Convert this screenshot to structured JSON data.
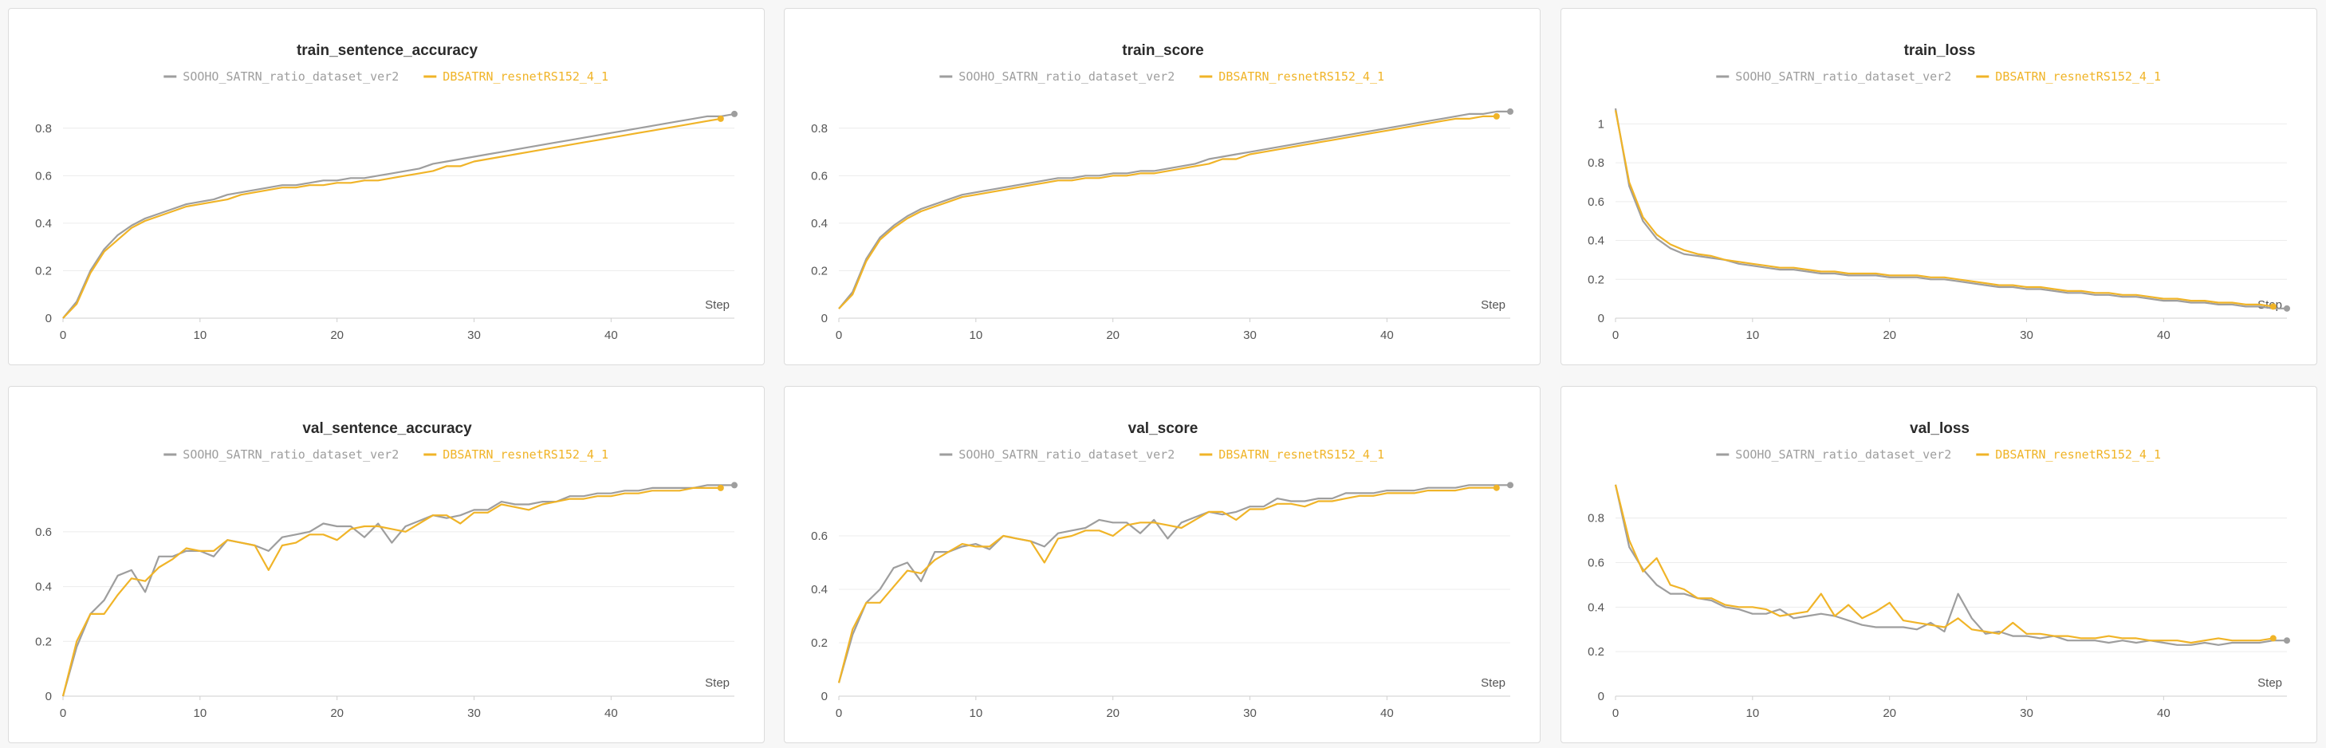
{
  "colors": {
    "series_1": "#9e9e9e",
    "series_2": "#f0b428",
    "grid": "#ececec",
    "axis": "#cfcfcf"
  },
  "chart_data": [
    {
      "type": "line",
      "title": "train_sentence_accuracy",
      "xlabel": "Step",
      "xlim": [
        0,
        49
      ],
      "ylim": [
        0,
        0.9
      ],
      "xticks": [
        0,
        10,
        20,
        30,
        40
      ],
      "yticks": [
        0,
        0.2,
        0.4,
        0.6,
        0.8
      ],
      "ytick_labels": [
        "0",
        "0.2",
        "0.4",
        "0.6",
        "0.8"
      ],
      "legend_position": "top-center",
      "grid": true,
      "series": [
        {
          "name": "SOOHO_SATRN_ratio_dataset_ver2",
          "y": [
            0.0,
            0.07,
            0.2,
            0.29,
            0.35,
            0.39,
            0.42,
            0.44,
            0.46,
            0.48,
            0.49,
            0.5,
            0.52,
            0.53,
            0.54,
            0.55,
            0.56,
            0.56,
            0.57,
            0.58,
            0.58,
            0.59,
            0.59,
            0.6,
            0.61,
            0.62,
            0.63,
            0.65,
            0.66,
            0.67,
            0.68,
            0.69,
            0.7,
            0.71,
            0.72,
            0.73,
            0.74,
            0.75,
            0.76,
            0.77,
            0.78,
            0.79,
            0.8,
            0.81,
            0.82,
            0.83,
            0.84,
            0.85,
            0.85,
            0.86
          ]
        },
        {
          "name": "DBSATRN_resnetRS152_4_1",
          "y": [
            0.0,
            0.06,
            0.19,
            0.28,
            0.33,
            0.38,
            0.41,
            0.43,
            0.45,
            0.47,
            0.48,
            0.49,
            0.5,
            0.52,
            0.53,
            0.54,
            0.55,
            0.55,
            0.56,
            0.56,
            0.57,
            0.57,
            0.58,
            0.58,
            0.59,
            0.6,
            0.61,
            0.62,
            0.64,
            0.64,
            0.66,
            0.67,
            0.68,
            0.69,
            0.7,
            0.71,
            0.72,
            0.73,
            0.74,
            0.75,
            0.76,
            0.77,
            0.78,
            0.79,
            0.8,
            0.81,
            0.82,
            0.83,
            0.84
          ]
        }
      ]
    },
    {
      "type": "line",
      "title": "train_score",
      "xlabel": "Step",
      "xlim": [
        0,
        49
      ],
      "ylim": [
        0,
        0.9
      ],
      "xticks": [
        0,
        10,
        20,
        30,
        40
      ],
      "yticks": [
        0,
        0.2,
        0.4,
        0.6,
        0.8
      ],
      "ytick_labels": [
        "0",
        "0.2",
        "0.4",
        "0.6",
        "0.8"
      ],
      "legend_position": "top-center",
      "grid": true,
      "series": [
        {
          "name": "SOOHO_SATRN_ratio_dataset_ver2",
          "y": [
            0.04,
            0.11,
            0.25,
            0.34,
            0.39,
            0.43,
            0.46,
            0.48,
            0.5,
            0.52,
            0.53,
            0.54,
            0.55,
            0.56,
            0.57,
            0.58,
            0.59,
            0.59,
            0.6,
            0.6,
            0.61,
            0.61,
            0.62,
            0.62,
            0.63,
            0.64,
            0.65,
            0.67,
            0.68,
            0.69,
            0.7,
            0.71,
            0.72,
            0.73,
            0.74,
            0.75,
            0.76,
            0.77,
            0.78,
            0.79,
            0.8,
            0.81,
            0.82,
            0.83,
            0.84,
            0.85,
            0.86,
            0.86,
            0.87,
            0.87
          ]
        },
        {
          "name": "DBSATRN_resnetRS152_4_1",
          "y": [
            0.04,
            0.1,
            0.24,
            0.33,
            0.38,
            0.42,
            0.45,
            0.47,
            0.49,
            0.51,
            0.52,
            0.53,
            0.54,
            0.55,
            0.56,
            0.57,
            0.58,
            0.58,
            0.59,
            0.59,
            0.6,
            0.6,
            0.61,
            0.61,
            0.62,
            0.63,
            0.64,
            0.65,
            0.67,
            0.67,
            0.69,
            0.7,
            0.71,
            0.72,
            0.73,
            0.74,
            0.75,
            0.76,
            0.77,
            0.78,
            0.79,
            0.8,
            0.81,
            0.82,
            0.83,
            0.84,
            0.84,
            0.85,
            0.85
          ]
        }
      ]
    },
    {
      "type": "line",
      "title": "train_loss",
      "xlabel": "Step",
      "xlim": [
        0,
        49
      ],
      "ylim": [
        0,
        1.1
      ],
      "xticks": [
        0,
        10,
        20,
        30,
        40
      ],
      "yticks": [
        0,
        0.2,
        0.4,
        0.6,
        0.8,
        1
      ],
      "ytick_labels": [
        "0",
        "0.2",
        "0.4",
        "0.6",
        "0.8",
        "1"
      ],
      "legend_position": "top-center",
      "grid": true,
      "series": [
        {
          "name": "SOOHO_SATRN_ratio_dataset_ver2",
          "y": [
            1.08,
            0.68,
            0.5,
            0.41,
            0.36,
            0.33,
            0.32,
            0.31,
            0.3,
            0.28,
            0.27,
            0.26,
            0.25,
            0.25,
            0.24,
            0.23,
            0.23,
            0.22,
            0.22,
            0.22,
            0.21,
            0.21,
            0.21,
            0.2,
            0.2,
            0.19,
            0.18,
            0.17,
            0.16,
            0.16,
            0.15,
            0.15,
            0.14,
            0.13,
            0.13,
            0.12,
            0.12,
            0.11,
            0.11,
            0.1,
            0.09,
            0.09,
            0.08,
            0.08,
            0.07,
            0.07,
            0.06,
            0.06,
            0.05,
            0.05
          ]
        },
        {
          "name": "DBSATRN_resnetRS152_4_1",
          "y": [
            1.07,
            0.7,
            0.52,
            0.43,
            0.38,
            0.35,
            0.33,
            0.32,
            0.3,
            0.29,
            0.28,
            0.27,
            0.26,
            0.26,
            0.25,
            0.24,
            0.24,
            0.23,
            0.23,
            0.23,
            0.22,
            0.22,
            0.22,
            0.21,
            0.21,
            0.2,
            0.19,
            0.18,
            0.17,
            0.17,
            0.16,
            0.16,
            0.15,
            0.14,
            0.14,
            0.13,
            0.13,
            0.12,
            0.12,
            0.11,
            0.1,
            0.1,
            0.09,
            0.09,
            0.08,
            0.08,
            0.07,
            0.07,
            0.06
          ]
        }
      ]
    },
    {
      "type": "line",
      "title": "val_sentence_accuracy",
      "xlabel": "Step",
      "xlim": [
        0,
        49
      ],
      "ylim": [
        0,
        0.78
      ],
      "xticks": [
        0,
        10,
        20,
        30,
        40
      ],
      "yticks": [
        0,
        0.2,
        0.4,
        0.6
      ],
      "ytick_labels": [
        "0",
        "0.2",
        "0.4",
        "0.6"
      ],
      "legend_position": "top-center",
      "grid": true,
      "series": [
        {
          "name": "SOOHO_SATRN_ratio_dataset_ver2",
          "y": [
            0.0,
            0.18,
            0.3,
            0.35,
            0.44,
            0.46,
            0.38,
            0.51,
            0.51,
            0.53,
            0.53,
            0.51,
            0.57,
            0.56,
            0.55,
            0.53,
            0.58,
            0.59,
            0.6,
            0.63,
            0.62,
            0.62,
            0.58,
            0.63,
            0.56,
            0.62,
            0.64,
            0.66,
            0.65,
            0.66,
            0.68,
            0.68,
            0.71,
            0.7,
            0.7,
            0.71,
            0.71,
            0.73,
            0.73,
            0.74,
            0.74,
            0.75,
            0.75,
            0.76,
            0.76,
            0.76,
            0.76,
            0.77,
            0.77,
            0.77
          ]
        },
        {
          "name": "DBSATRN_resnetRS152_4_1",
          "y": [
            0.0,
            0.2,
            0.3,
            0.3,
            0.37,
            0.43,
            0.42,
            0.47,
            0.5,
            0.54,
            0.53,
            0.53,
            0.57,
            0.56,
            0.55,
            0.46,
            0.55,
            0.56,
            0.59,
            0.59,
            0.57,
            0.61,
            0.62,
            0.62,
            0.61,
            0.6,
            0.63,
            0.66,
            0.66,
            0.63,
            0.67,
            0.67,
            0.7,
            0.69,
            0.68,
            0.7,
            0.71,
            0.72,
            0.72,
            0.73,
            0.73,
            0.74,
            0.74,
            0.75,
            0.75,
            0.75,
            0.76,
            0.76,
            0.76
          ]
        }
      ]
    },
    {
      "type": "line",
      "title": "val_score",
      "xlabel": "Step",
      "xlim": [
        0,
        49
      ],
      "ylim": [
        0,
        0.8
      ],
      "xticks": [
        0,
        10,
        20,
        30,
        40
      ],
      "yticks": [
        0,
        0.2,
        0.4,
        0.6
      ],
      "ytick_labels": [
        "0",
        "0.2",
        "0.4",
        "0.6"
      ],
      "legend_position": "top-center",
      "grid": true,
      "series": [
        {
          "name": "SOOHO_SATRN_ratio_dataset_ver2",
          "y": [
            0.05,
            0.23,
            0.35,
            0.4,
            0.48,
            0.5,
            0.43,
            0.54,
            0.54,
            0.56,
            0.57,
            0.55,
            0.6,
            0.59,
            0.58,
            0.56,
            0.61,
            0.62,
            0.63,
            0.66,
            0.65,
            0.65,
            0.61,
            0.66,
            0.59,
            0.65,
            0.67,
            0.69,
            0.68,
            0.69,
            0.71,
            0.71,
            0.74,
            0.73,
            0.73,
            0.74,
            0.74,
            0.76,
            0.76,
            0.76,
            0.77,
            0.77,
            0.77,
            0.78,
            0.78,
            0.78,
            0.79,
            0.79,
            0.79,
            0.79
          ]
        },
        {
          "name": "DBSATRN_resnetRS152_4_1",
          "y": [
            0.05,
            0.25,
            0.35,
            0.35,
            0.41,
            0.47,
            0.46,
            0.51,
            0.54,
            0.57,
            0.56,
            0.56,
            0.6,
            0.59,
            0.58,
            0.5,
            0.59,
            0.6,
            0.62,
            0.62,
            0.6,
            0.64,
            0.65,
            0.65,
            0.64,
            0.63,
            0.66,
            0.69,
            0.69,
            0.66,
            0.7,
            0.7,
            0.72,
            0.72,
            0.71,
            0.73,
            0.73,
            0.74,
            0.75,
            0.75,
            0.76,
            0.76,
            0.76,
            0.77,
            0.77,
            0.77,
            0.78,
            0.78,
            0.78
          ]
        }
      ]
    },
    {
      "type": "line",
      "title": "val_loss",
      "xlabel": "Step",
      "xlim": [
        0,
        49
      ],
      "ylim": [
        0,
        0.96
      ],
      "xticks": [
        0,
        10,
        20,
        30,
        40
      ],
      "yticks": [
        0,
        0.2,
        0.4,
        0.6,
        0.8
      ],
      "ytick_labels": [
        "0",
        "0.2",
        "0.4",
        "0.6",
        "0.8"
      ],
      "legend_position": "top-center",
      "grid": true,
      "series": [
        {
          "name": "SOOHO_SATRN_ratio_dataset_ver2",
          "y": [
            0.95,
            0.67,
            0.57,
            0.5,
            0.46,
            0.46,
            0.44,
            0.43,
            0.4,
            0.39,
            0.37,
            0.37,
            0.39,
            0.35,
            0.36,
            0.37,
            0.36,
            0.34,
            0.32,
            0.31,
            0.31,
            0.31,
            0.3,
            0.33,
            0.29,
            0.46,
            0.35,
            0.28,
            0.29,
            0.27,
            0.27,
            0.26,
            0.27,
            0.25,
            0.25,
            0.25,
            0.24,
            0.25,
            0.24,
            0.25,
            0.24,
            0.23,
            0.23,
            0.24,
            0.23,
            0.24,
            0.24,
            0.24,
            0.25,
            0.25
          ]
        },
        {
          "name": "DBSATRN_resnetRS152_4_1",
          "y": [
            0.95,
            0.7,
            0.56,
            0.62,
            0.5,
            0.48,
            0.44,
            0.44,
            0.41,
            0.4,
            0.4,
            0.39,
            0.36,
            0.37,
            0.38,
            0.46,
            0.36,
            0.41,
            0.35,
            0.38,
            0.42,
            0.34,
            0.33,
            0.32,
            0.31,
            0.35,
            0.3,
            0.29,
            0.28,
            0.33,
            0.28,
            0.28,
            0.27,
            0.27,
            0.26,
            0.26,
            0.27,
            0.26,
            0.26,
            0.25,
            0.25,
            0.25,
            0.24,
            0.25,
            0.26,
            0.25,
            0.25,
            0.25,
            0.26
          ]
        }
      ]
    }
  ]
}
